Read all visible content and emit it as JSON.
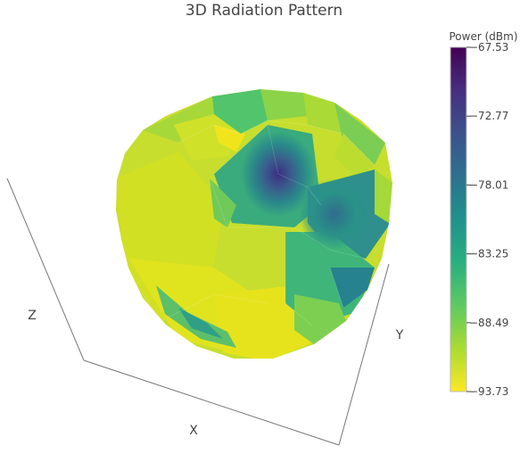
{
  "chart_data": {
    "type": "surface",
    "title": "3D Radiation Pattern",
    "scene": {
      "xlabel": "X",
      "ylabel": "Y",
      "zlabel": "Z",
      "grid": false
    },
    "colorbar": {
      "title": "Power (dBm)",
      "colorscale": "Viridis (reversed: yellow = low, purple = high)",
      "range": [
        -93.73,
        -67.53
      ],
      "ticks": [
        -67.53,
        -72.77,
        -78.01,
        -83.25,
        -88.49,
        -93.73
      ],
      "tick_labels": [
        "−67.53",
        "−72.77",
        "−78.01",
        "−83.25",
        "−88.49",
        "−93.73"
      ]
    },
    "surface_regions": [
      {
        "region": "lower-left lobe",
        "power": -92.5
      },
      {
        "region": "left",
        "power": -91.8
      },
      {
        "region": "bottom",
        "power": -92.9
      },
      {
        "region": "lower-left band",
        "power": -84.5
      },
      {
        "region": "top-left cap",
        "power": -89.5
      },
      {
        "region": "top cap",
        "power": -85.5
      },
      {
        "region": "top-right",
        "power": -90.5
      },
      {
        "region": "center hot spot",
        "power": -70.5
      },
      {
        "region": "center ring",
        "power": -77.0
      },
      {
        "region": "right-center",
        "power": -76.5
      },
      {
        "region": "right lobe",
        "power": -82.0
      },
      {
        "region": "lower-right",
        "power": -86.0
      },
      {
        "region": "right edge",
        "power": -89.0
      }
    ]
  },
  "labels": {
    "title": "3D Radiation Pattern",
    "x_axis": "X",
    "y_axis": "Y",
    "z_axis": "Z",
    "colorbar_title": "Power (dBm)"
  }
}
